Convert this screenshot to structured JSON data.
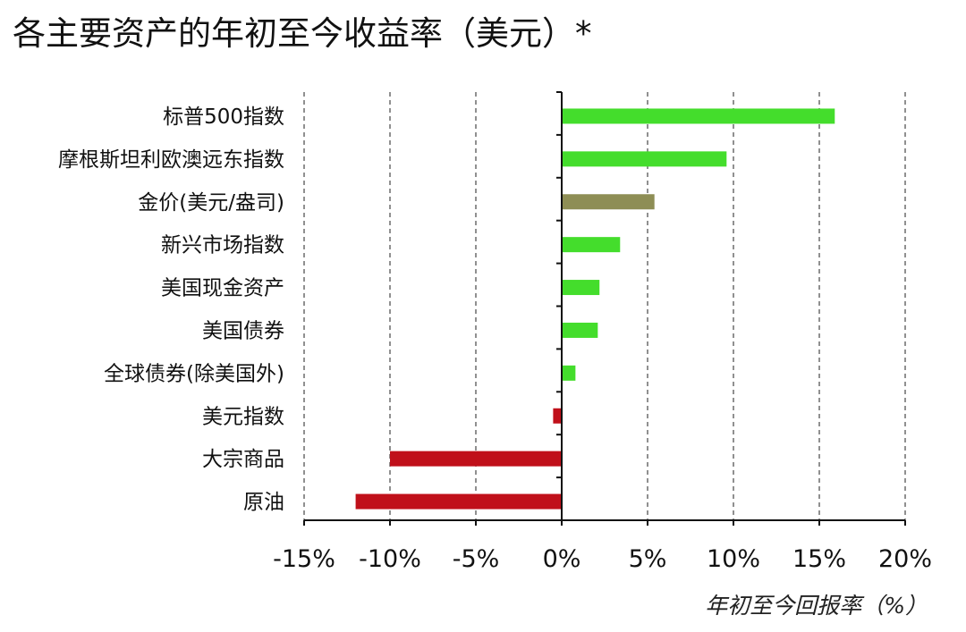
{
  "chart_data": {
    "type": "bar",
    "orientation": "horizontal",
    "title": "各主要资产的年初至今收益率（美元）*",
    "xlabel": "年初至今回报率（%）",
    "ylabel": "",
    "xlim": [
      -15,
      20
    ],
    "xticks": [
      -15,
      -10,
      -5,
      0,
      5,
      10,
      15,
      20
    ],
    "xtick_labels": [
      "-15%",
      "-10%",
      "-5%",
      "0%",
      "5%",
      "10%",
      "15%",
      "20%"
    ],
    "grid": "vertical-dashed",
    "categories": [
      "标普500指数",
      "摩根斯坦利欧澳远东指数",
      "金价(美元/盎司)",
      "新兴市场指数",
      "美国现金资产",
      "美国债券",
      "全球债券(除美国外)",
      "美元指数",
      "大宗商品",
      "原油"
    ],
    "values": [
      15.9,
      9.6,
      5.4,
      3.4,
      2.2,
      2.1,
      0.8,
      -0.5,
      -10.0,
      -12.0
    ],
    "colors": [
      "#44dd2c",
      "#44dd2c",
      "#8e8e55",
      "#44dd2c",
      "#44dd2c",
      "#44dd2c",
      "#44dd2c",
      "#c0101a",
      "#c0101a",
      "#c0101a"
    ]
  }
}
